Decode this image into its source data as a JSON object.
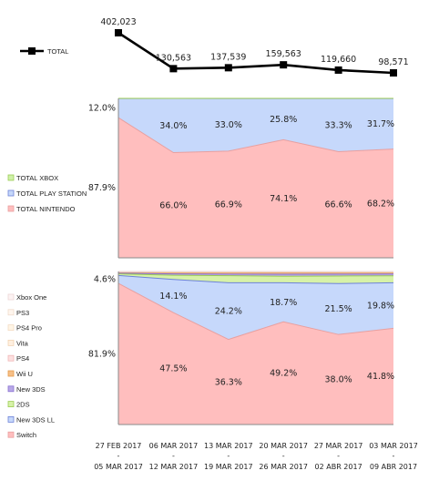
{
  "chart_data": [
    {
      "type": "line",
      "series": [
        {
          "name": "TOTAL",
          "values": [
            402023,
            130563,
            137539,
            159563,
            119660,
            98571
          ],
          "labels": [
            "402,023",
            "130,563",
            "137,539",
            "159,563",
            "119,660",
            "98,571"
          ]
        }
      ],
      "color": "#000000"
    },
    {
      "type": "area",
      "stacked_percent": true,
      "series": [
        {
          "name": "TOTAL NINTENDO",
          "values": [
            87.9,
            66.0,
            66.9,
            74.1,
            66.6,
            68.2
          ],
          "labels": [
            "87.9%",
            "66.0%",
            "66.9%",
            "74.1%",
            "66.6%",
            "68.2%"
          ],
          "color": "#ffbebe",
          "line": "#e8a0a0"
        },
        {
          "name": "TOTAL PLAY STATION",
          "values": [
            12.0,
            34.0,
            33.0,
            25.8,
            33.3,
            31.7
          ],
          "labels": [
            "12.0%",
            "34.0%",
            "33.0%",
            "25.8%",
            "33.3%",
            "31.7%"
          ],
          "color": "#c6d8fb",
          "line": "#6e82d8"
        },
        {
          "name": "TOTAL XBOX",
          "values": [
            0.1,
            0.0,
            0.1,
            0.1,
            0.1,
            0.1
          ],
          "labels": [],
          "color": "#cff2a8",
          "line": "#9ccc55"
        }
      ],
      "legend_order": [
        "TOTAL XBOX",
        "TOTAL PLAY STATION",
        "TOTAL NINTENDO"
      ]
    },
    {
      "type": "area",
      "stacked_percent": true,
      "series": [
        {
          "name": "Switch",
          "values": [
            81.9,
            47.5,
            36.3,
            49.2,
            38.0,
            41.8
          ],
          "labels": [
            "81.9%",
            "47.5%",
            "36.3%",
            "49.2%",
            "38.0%",
            "41.8%"
          ],
          "color": "#ffbebe",
          "line": "#e8a0a0"
        },
        {
          "name": "New 3DS LL",
          "values": [
            4.6,
            14.1,
            24.2,
            18.7,
            21.5,
            19.8
          ],
          "labels": [
            "4.6%",
            "14.1%",
            "24.2%",
            "18.7%",
            "21.5%",
            "19.8%"
          ],
          "color": "#c6d8fb",
          "line": "#6e82d8"
        },
        {
          "name": "2DS",
          "values": [
            0.9,
            1.8,
            3.0,
            3.1,
            3.2,
            3.0
          ],
          "labels": [],
          "color": "#d7f2a8",
          "line": "#9ccc55"
        },
        {
          "name": "New 3DS",
          "values": [
            0.5,
            0.6,
            0.7,
            1.0,
            0.8,
            0.8
          ],
          "labels": [],
          "color": "#b8a8e8",
          "line": "#8a72d0"
        },
        {
          "name": "Wii U",
          "values": [
            0.4,
            0.5,
            0.6,
            0.7,
            0.6,
            0.6
          ],
          "labels": [],
          "color": "#f7c088",
          "line": "#e49a4a"
        },
        {
          "name": "PS4",
          "values": [
            0.2,
            0.2,
            0.2,
            0.3,
            0.2,
            0.2
          ],
          "labels": [],
          "color": "#fde0e0",
          "line": "#f0b8b8"
        },
        {
          "name": "Vita",
          "values": [
            0.1,
            0.1,
            0.1,
            0.1,
            0.1,
            0.1
          ],
          "labels": [],
          "color": "#fff0e0",
          "line": "#f2d4b4"
        },
        {
          "name": "PS4 Pro",
          "values": [
            0.1,
            0.1,
            0.1,
            0.1,
            0.1,
            0.1
          ],
          "labels": [],
          "color": "#fff5e5",
          "line": "#f4dcc4"
        },
        {
          "name": "PS3",
          "values": [
            0.05,
            0.05,
            0.05,
            0.05,
            0.05,
            0.05
          ],
          "labels": [],
          "color": "#fff6ee",
          "line": "#f0dccc"
        },
        {
          "name": "Xbox One",
          "values": [
            0.05,
            0.05,
            0.05,
            0.05,
            0.05,
            0.05
          ],
          "labels": [],
          "color": "#fdf3f3",
          "line": "#ecd6d6"
        }
      ],
      "legend_order": [
        "Xbox One",
        "PS3",
        "PS4 Pro",
        "Vita",
        "PS4",
        "Wii U",
        "New 3DS",
        "2DS",
        "New 3DS LL",
        "Switch"
      ]
    }
  ],
  "categories": [
    [
      "27 FEB 2017",
      "-",
      "05 MAR 2017"
    ],
    [
      "06 MAR 2017",
      "-",
      "12 MAR 2017"
    ],
    [
      "13 MAR 2017",
      "-",
      "19 MAR 2017"
    ],
    [
      "20 MAR 2017",
      "-",
      "26 MAR 2017"
    ],
    [
      "27 MAR 2017",
      "-",
      "02 ABR 2017"
    ],
    [
      "03 MAR 2017",
      "-",
      "09 ABR 2017"
    ]
  ]
}
